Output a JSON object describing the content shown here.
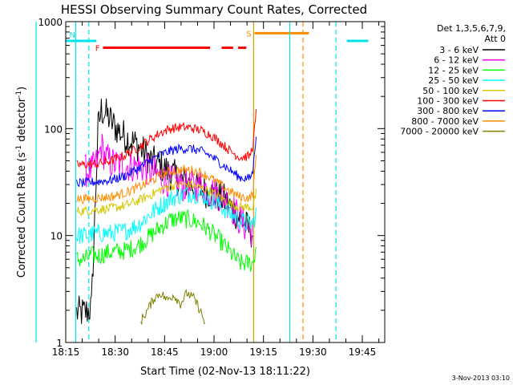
{
  "chart_data": {
    "type": "line",
    "title": "HESSI Observing Summary Count Rates, Corrected",
    "xlabel": "Start Time (02-Nov-13 18:11:22)",
    "ylabel_main": "Corrected Count Rate (s",
    "ylabel_sup1": "-1",
    "ylabel_mid": " detector",
    "ylabel_sup2": "-1",
    "ylabel_end": ")",
    "y_scale": "log",
    "ylim": [
      1,
      1000
    ],
    "xlim_minutes": [
      18.2,
      115
    ],
    "x_ticks": [
      {
        "label": "18:15",
        "value": 18.2
      },
      {
        "label": "18:30",
        "value": 33.2
      },
      {
        "label": "18:45",
        "value": 48.2
      },
      {
        "label": "19:00",
        "value": 63.2
      },
      {
        "label": "19:15",
        "value": 78.2
      },
      {
        "label": "19:30",
        "value": 93.2
      },
      {
        "label": "19:45",
        "value": 108.2
      }
    ],
    "y_ticks": [
      {
        "label": "1",
        "value": 1
      },
      {
        "label": "10",
        "value": 10
      },
      {
        "label": "100",
        "value": 100
      },
      {
        "label": "1000",
        "value": 1000
      }
    ],
    "legend_header": [
      "Det 1,3,5,6,7,9,",
      "Att 0"
    ],
    "legend_position": "right",
    "footer_date": "3-Nov-2013 03:10",
    "flags": [
      {
        "label": "N",
        "color": "#00e5e5",
        "level": 660,
        "segments": [
          [
            0,
            27.5
          ],
          [
            103.5,
            110
          ]
        ]
      },
      {
        "label": "F",
        "color": "#ff0000",
        "level": 570,
        "segments": [
          [
            29.5,
            62
          ],
          [
            65.5,
            69
          ],
          [
            70.5,
            73
          ]
        ]
      },
      {
        "label": "S",
        "color": "#ff8c00",
        "level": 780,
        "segments": [
          [
            75.5,
            92
          ]
        ]
      }
    ],
    "vlines": [
      {
        "x": 9.2,
        "color": "#00e5e5",
        "style": "solid"
      },
      {
        "x": 21.2,
        "color": "#00e5e5",
        "style": "solid"
      },
      {
        "x": 25.2,
        "color": "#00e5e5",
        "style": "dashed"
      },
      {
        "x": 75.2,
        "color": "#d4a000",
        "style": "solid"
      },
      {
        "x": 86.2,
        "color": "#00e5e5",
        "style": "solid"
      },
      {
        "x": 90.2,
        "color": "#ff8c00",
        "style": "dashed"
      },
      {
        "x": 100.2,
        "color": "#00e5e5",
        "style": "dashed"
      }
    ],
    "series": [
      {
        "name": "3 - 6 keV",
        "color": "#000000",
        "points": [
          [
            21.5,
            1.9
          ],
          [
            24,
            1.9
          ],
          [
            26,
            2.1
          ],
          [
            28,
            100
          ],
          [
            29,
            150
          ],
          [
            31,
            130
          ],
          [
            33,
            105
          ],
          [
            36,
            85
          ],
          [
            40,
            70
          ],
          [
            44,
            50
          ],
          [
            47,
            45
          ],
          [
            50,
            38
          ],
          [
            54,
            32
          ],
          [
            58,
            28
          ],
          [
            62,
            25
          ],
          [
            66,
            22
          ],
          [
            70,
            16
          ],
          [
            73,
            12
          ],
          [
            75,
            10.5
          ]
        ]
      },
      {
        "name": "6 - 12 keV",
        "color": "#ff00ff",
        "points": [
          [
            24,
            40
          ],
          [
            26,
            40
          ],
          [
            28,
            50
          ],
          [
            29,
            70
          ],
          [
            30,
            55
          ],
          [
            32,
            48
          ],
          [
            35,
            45
          ],
          [
            38,
            45
          ],
          [
            41,
            44
          ],
          [
            44,
            40
          ],
          [
            47,
            35
          ],
          [
            50,
            32
          ],
          [
            53,
            30
          ],
          [
            56,
            28
          ],
          [
            59,
            30
          ],
          [
            62,
            26
          ],
          [
            65,
            24
          ],
          [
            68,
            20
          ],
          [
            71,
            14
          ],
          [
            73,
            12
          ],
          [
            75,
            11
          ]
        ]
      },
      {
        "name": "12 - 25 keV",
        "color": "#00ff00",
        "points": [
          [
            21.5,
            6
          ],
          [
            24,
            6
          ],
          [
            26,
            6.5
          ],
          [
            28,
            6.5
          ],
          [
            32,
            7
          ],
          [
            36,
            7.2
          ],
          [
            40,
            8
          ],
          [
            44,
            10
          ],
          [
            47,
            12
          ],
          [
            50,
            14
          ],
          [
            53,
            14.5
          ],
          [
            56,
            14
          ],
          [
            59,
            13
          ],
          [
            62,
            11
          ],
          [
            65,
            9
          ],
          [
            68,
            7
          ],
          [
            71,
            5.5
          ],
          [
            75,
            5.5
          ],
          [
            76,
            8
          ]
        ]
      },
      {
        "name": "25 - 50 keV",
        "color": "#00ffff",
        "points": [
          [
            21.5,
            10
          ],
          [
            24,
            10
          ],
          [
            28,
            10.5
          ],
          [
            32,
            10.5
          ],
          [
            36,
            11
          ],
          [
            40,
            12.5
          ],
          [
            44,
            16
          ],
          [
            47,
            19
          ],
          [
            50,
            22
          ],
          [
            53,
            24
          ],
          [
            56,
            25
          ],
          [
            59,
            24
          ],
          [
            62,
            22
          ],
          [
            65,
            19
          ],
          [
            68,
            16
          ],
          [
            71,
            14
          ],
          [
            73,
            13
          ],
          [
            75,
            13
          ],
          [
            76,
            16
          ]
        ]
      },
      {
        "name": "50 - 100 keV",
        "color": "#d4c800",
        "points": [
          [
            21.5,
            17
          ],
          [
            24,
            17
          ],
          [
            28,
            17.5
          ],
          [
            32,
            18
          ],
          [
            36,
            19
          ],
          [
            40,
            21
          ],
          [
            44,
            24
          ],
          [
            47,
            27
          ],
          [
            50,
            29
          ],
          [
            53,
            30
          ],
          [
            56,
            30
          ],
          [
            59,
            28
          ],
          [
            62,
            26
          ],
          [
            65,
            23
          ],
          [
            68,
            20
          ],
          [
            71,
            18.5
          ],
          [
            75,
            18.5
          ],
          [
            76,
            25
          ]
        ]
      },
      {
        "name": "100 - 300 keV",
        "color": "#ff0000",
        "points": [
          [
            21.5,
            46
          ],
          [
            24,
            46
          ],
          [
            28,
            47
          ],
          [
            32,
            50
          ],
          [
            36,
            56
          ],
          [
            40,
            66
          ],
          [
            44,
            80
          ],
          [
            47,
            92
          ],
          [
            50,
            100
          ],
          [
            53,
            103
          ],
          [
            56,
            102
          ],
          [
            59,
            97
          ],
          [
            62,
            88
          ],
          [
            65,
            75
          ],
          [
            68,
            62
          ],
          [
            71,
            54
          ],
          [
            74,
            55
          ],
          [
            75,
            70
          ],
          [
            76,
            140
          ]
        ]
      },
      {
        "name": "300 - 800 keV",
        "color": "#0000ff",
        "points": [
          [
            21.5,
            31
          ],
          [
            24,
            31
          ],
          [
            28,
            32
          ],
          [
            32,
            33
          ],
          [
            36,
            36
          ],
          [
            40,
            42
          ],
          [
            44,
            50
          ],
          [
            47,
            57
          ],
          [
            50,
            62
          ],
          [
            53,
            65
          ],
          [
            56,
            65
          ],
          [
            59,
            62
          ],
          [
            62,
            56
          ],
          [
            65,
            48
          ],
          [
            68,
            41
          ],
          [
            71,
            35
          ],
          [
            74,
            34
          ],
          [
            75,
            40
          ],
          [
            76,
            90
          ]
        ]
      },
      {
        "name": "800 - 7000 keV",
        "color": "#ff8c00",
        "points": [
          [
            21.5,
            22
          ],
          [
            24,
            22
          ],
          [
            28,
            22.5
          ],
          [
            32,
            23
          ],
          [
            36,
            25
          ],
          [
            40,
            28
          ],
          [
            44,
            32
          ],
          [
            47,
            37
          ],
          [
            50,
            40
          ],
          [
            53,
            41
          ],
          [
            56,
            41
          ],
          [
            59,
            39
          ],
          [
            62,
            35
          ],
          [
            65,
            30
          ],
          [
            68,
            26
          ],
          [
            71,
            23
          ],
          [
            74,
            22.5
          ],
          [
            75,
            25
          ],
          [
            76,
            55
          ]
        ]
      },
      {
        "name": "7000 - 20000 keV",
        "color": "#808000",
        "points": [
          [
            41,
            1.6
          ],
          [
            43,
            2
          ],
          [
            45,
            2.6
          ],
          [
            47,
            2.9
          ],
          [
            49,
            2.5
          ],
          [
            51,
            2.8
          ],
          [
            53,
            2.3
          ],
          [
            55,
            2.9
          ],
          [
            57,
            2.6
          ],
          [
            59,
            2
          ],
          [
            60.5,
            1.5
          ]
        ]
      }
    ]
  }
}
